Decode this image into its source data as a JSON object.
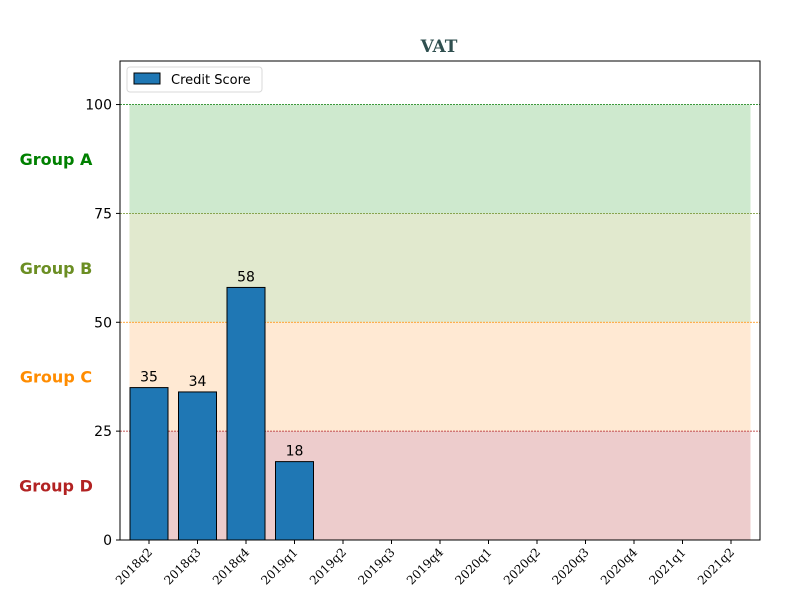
{
  "chart_data": {
    "type": "bar",
    "title": "VAT",
    "categories": [
      "2018q2",
      "2018q3",
      "2018q4",
      "2019q1",
      "2019q2",
      "2019q3",
      "2019q4",
      "2020q1",
      "2020q2",
      "2020q3",
      "2020q4",
      "2021q1",
      "2021q2"
    ],
    "series": [
      {
        "name": "Credit Score",
        "values": [
          35,
          34,
          58,
          18,
          null,
          null,
          null,
          null,
          null,
          null,
          null,
          null,
          null
        ],
        "color": "#1f77b4"
      }
    ],
    "ylim": [
      0,
      110
    ],
    "yticks": [
      0,
      25,
      50,
      75,
      100
    ],
    "legend_position": "top-left",
    "bands": [
      {
        "label": "Group A",
        "from": 75,
        "to": 100,
        "fill": "#2ca02c",
        "label_color": "#008000"
      },
      {
        "label": "Group B",
        "from": 50,
        "to": 75,
        "fill": "#7f9f2a",
        "label_color": "#6b8e23"
      },
      {
        "label": "Group C",
        "from": 25,
        "to": 50,
        "fill": "#ff9f3f",
        "label_color": "#ff8c00"
      },
      {
        "label": "Group D",
        "from": 0,
        "to": 25,
        "fill": "#b22222",
        "label_color": "#b22222"
      }
    ],
    "threshold_lines": [
      {
        "value": 100,
        "color": "#228b22"
      },
      {
        "value": 75,
        "color": "#6b8e23"
      },
      {
        "value": 50,
        "color": "#ff8c00"
      },
      {
        "value": 25,
        "color": "#b22222"
      }
    ]
  }
}
